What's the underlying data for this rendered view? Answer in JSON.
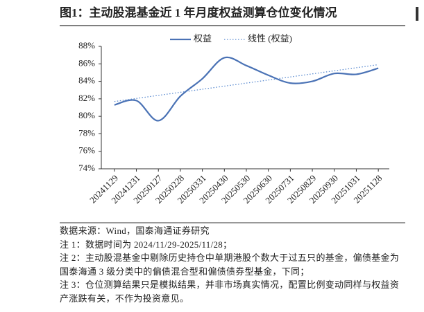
{
  "chart_data": {
    "type": "line",
    "title": "图1：主动股混基金近 1 年月度权益测算仓位变化情况",
    "categories": [
      "20241129",
      "20241231",
      "20250127",
      "20250228",
      "20250331",
      "20250430",
      "20250530",
      "20250630",
      "20250731",
      "20250829",
      "20250930",
      "20251031",
      "20251128"
    ],
    "series": [
      {
        "name": "权益",
        "color": "#4a72b5",
        "values": [
          81.3,
          81.8,
          79.5,
          82.3,
          84.3,
          86.7,
          85.8,
          84.7,
          83.8,
          84.0,
          84.9,
          84.8,
          85.5
        ]
      }
    ],
    "trendline": {
      "name": "线性 (权益)",
      "color": "#5b8bd0"
    },
    "ylim": [
      74,
      88
    ],
    "yticks": [
      {
        "value": 74,
        "label": "74%"
      },
      {
        "value": 76,
        "label": "76%"
      },
      {
        "value": 78,
        "label": "78%"
      },
      {
        "value": 80,
        "label": "80%"
      },
      {
        "value": 82,
        "label": "82%"
      },
      {
        "value": 84,
        "label": "84%"
      },
      {
        "value": 86,
        "label": "86%"
      },
      {
        "value": 88,
        "label": "88%"
      }
    ],
    "legend": "top",
    "notes": [
      "数据来源：Wind，国泰海通证券研究",
      "注 1：数据时间为 2024/11/29-2025/11/28；",
      "注 2：主动股混基金中剔除历史持仓中单期港股个数大于过五只的基金，偏债基金为国泰海通 3 级分类中的偏债混合型和偏债债券型基金，下同；",
      "注 3：仓位测算结果只是模拟结果，并非市场真实情况，配置比例变动同样与权益资产涨跌有关，不作为投资意见。"
    ]
  }
}
